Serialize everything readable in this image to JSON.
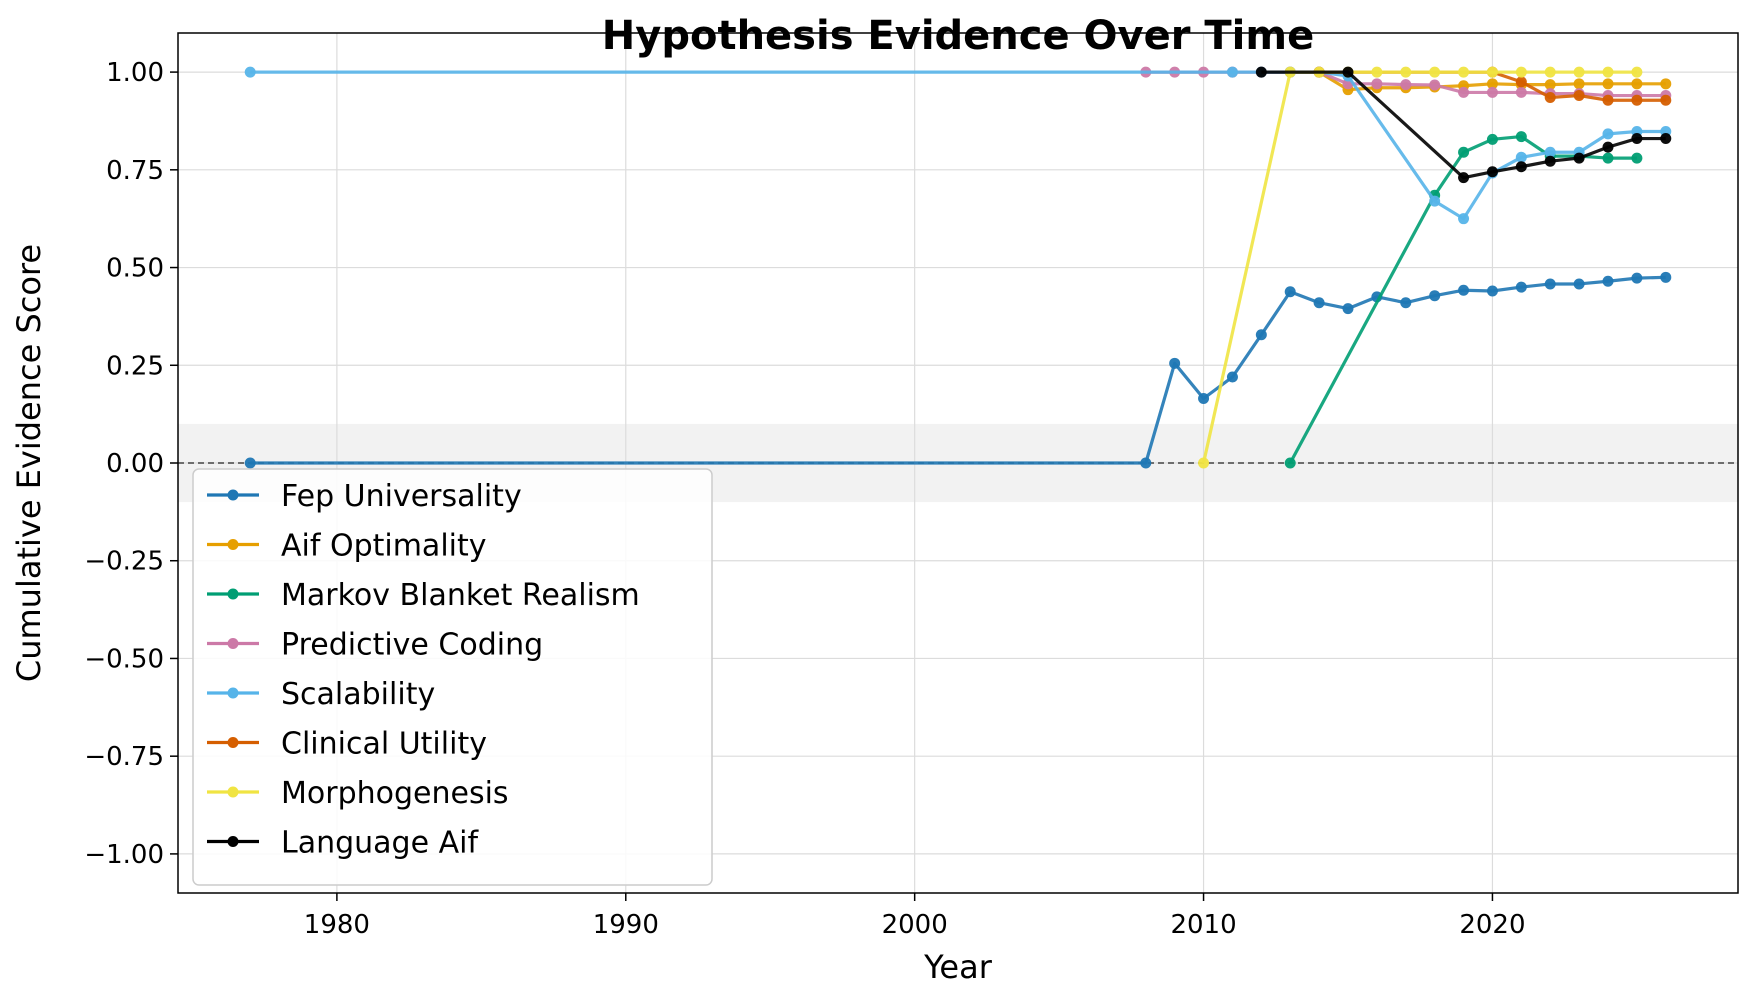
{
  "chart_data": {
    "type": "line",
    "title": "Hypothesis Evidence Over Time",
    "xlabel": "Year",
    "ylabel": "Cumulative Evidence Score",
    "xlim": [
      1974.5,
      2028.5
    ],
    "ylim": [
      -1.1,
      1.1
    ],
    "xticks": [
      "1980",
      "1990",
      "2000",
      "2010",
      "2020"
    ],
    "xtick_values": [
      1980,
      1990,
      2000,
      2010,
      2020
    ],
    "yticks": [
      "1.00",
      "0.75",
      "0.50",
      "0.25",
      "0.00",
      "−0.25",
      "−0.50",
      "−0.75",
      "−1.00"
    ],
    "ytick_values": [
      1.0,
      0.75,
      0.5,
      0.25,
      0.0,
      -0.25,
      -0.5,
      -0.75,
      -1.0
    ],
    "grid": true,
    "neutral_band": [
      -0.1,
      0.1
    ],
    "zero_line": true,
    "legend_position": "lower-left",
    "series": [
      {
        "name": "Fep Universality",
        "color": "#1f77b4",
        "points": [
          [
            1977,
            0
          ],
          [
            2008,
            0
          ],
          [
            2009,
            0.255
          ],
          [
            2010,
            0.165
          ],
          [
            2011,
            0.22
          ],
          [
            2012,
            0.328
          ],
          [
            2013,
            0.438
          ],
          [
            2014,
            0.41
          ],
          [
            2015,
            0.395
          ],
          [
            2016,
            0.425
          ],
          [
            2017,
            0.41
          ],
          [
            2018,
            0.428
          ],
          [
            2019,
            0.442
          ],
          [
            2020,
            0.44
          ],
          [
            2021,
            0.45
          ],
          [
            2022,
            0.458
          ],
          [
            2023,
            0.458
          ],
          [
            2024,
            0.465
          ],
          [
            2025,
            0.473
          ],
          [
            2026,
            0.475
          ]
        ]
      },
      {
        "name": "Aif Optimality",
        "color": "#e69f00",
        "points": [
          [
            2013,
            1.0
          ],
          [
            2014,
            1.0
          ],
          [
            2015,
            0.955
          ],
          [
            2016,
            0.96
          ],
          [
            2017,
            0.96
          ],
          [
            2018,
            0.962
          ],
          [
            2019,
            0.965
          ],
          [
            2020,
            0.97
          ],
          [
            2021,
            0.968
          ],
          [
            2022,
            0.968
          ],
          [
            2023,
            0.97
          ],
          [
            2024,
            0.97
          ],
          [
            2025,
            0.97
          ],
          [
            2026,
            0.97
          ]
        ]
      },
      {
        "name": "Markov Blanket Realism",
        "color": "#009e73",
        "points": [
          [
            2013,
            0
          ],
          [
            2018,
            0.685
          ],
          [
            2019,
            0.795
          ],
          [
            2020,
            0.828
          ],
          [
            2021,
            0.835
          ],
          [
            2022,
            0.785
          ],
          [
            2023,
            0.785
          ],
          [
            2024,
            0.78
          ],
          [
            2025,
            0.78
          ]
        ]
      },
      {
        "name": "Predictive Coding",
        "color": "#cc79a7",
        "points": [
          [
            2008,
            1.0
          ],
          [
            2009,
            1.0
          ],
          [
            2010,
            1.0
          ],
          [
            2011,
            1.0
          ],
          [
            2012,
            1.0
          ],
          [
            2013,
            1.0
          ],
          [
            2014,
            1.0
          ],
          [
            2015,
            0.97
          ],
          [
            2016,
            0.97
          ],
          [
            2017,
            0.968
          ],
          [
            2018,
            0.967
          ],
          [
            2019,
            0.948
          ],
          [
            2020,
            0.948
          ],
          [
            2021,
            0.948
          ],
          [
            2022,
            0.945
          ],
          [
            2023,
            0.945
          ],
          [
            2024,
            0.94
          ],
          [
            2025,
            0.94
          ],
          [
            2026,
            0.94
          ]
        ]
      },
      {
        "name": "Scalability",
        "color": "#56b4e9",
        "points": [
          [
            1977,
            1.0
          ],
          [
            2011,
            1.0
          ],
          [
            2012,
            1.0
          ],
          [
            2013,
            1.0
          ],
          [
            2014,
            1.0
          ],
          [
            2015,
            0.99
          ],
          [
            2018,
            0.67
          ],
          [
            2019,
            0.625
          ],
          [
            2020,
            0.742
          ],
          [
            2021,
            0.782
          ],
          [
            2022,
            0.795
          ],
          [
            2023,
            0.795
          ],
          [
            2024,
            0.842
          ],
          [
            2025,
            0.848
          ],
          [
            2026,
            0.848
          ]
        ]
      },
      {
        "name": "Clinical Utility",
        "color": "#d55e00",
        "points": [
          [
            2014,
            1.0
          ],
          [
            2020,
            1.0
          ],
          [
            2021,
            0.975
          ],
          [
            2022,
            0.935
          ],
          [
            2023,
            0.94
          ],
          [
            2024,
            0.928
          ],
          [
            2025,
            0.928
          ],
          [
            2026,
            0.928
          ]
        ]
      },
      {
        "name": "Morphogenesis",
        "color": "#f0e442",
        "points": [
          [
            2010,
            0
          ],
          [
            2013,
            1.0
          ],
          [
            2014,
            1.0
          ],
          [
            2015,
            1.0
          ],
          [
            2016,
            1.0
          ],
          [
            2017,
            1.0
          ],
          [
            2018,
            1.0
          ],
          [
            2019,
            1.0
          ],
          [
            2020,
            1.0
          ],
          [
            2021,
            1.0
          ],
          [
            2022,
            1.0
          ],
          [
            2023,
            1.0
          ],
          [
            2024,
            1.0
          ],
          [
            2025,
            1.0
          ]
        ]
      },
      {
        "name": "Language Aif",
        "color": "#000000",
        "points": [
          [
            2012,
            1.0
          ],
          [
            2015,
            1.0
          ],
          [
            2019,
            0.73
          ],
          [
            2020,
            0.745
          ],
          [
            2021,
            0.758
          ],
          [
            2022,
            0.772
          ],
          [
            2023,
            0.78
          ],
          [
            2024,
            0.808
          ],
          [
            2025,
            0.83
          ],
          [
            2026,
            0.83
          ]
        ]
      }
    ]
  }
}
